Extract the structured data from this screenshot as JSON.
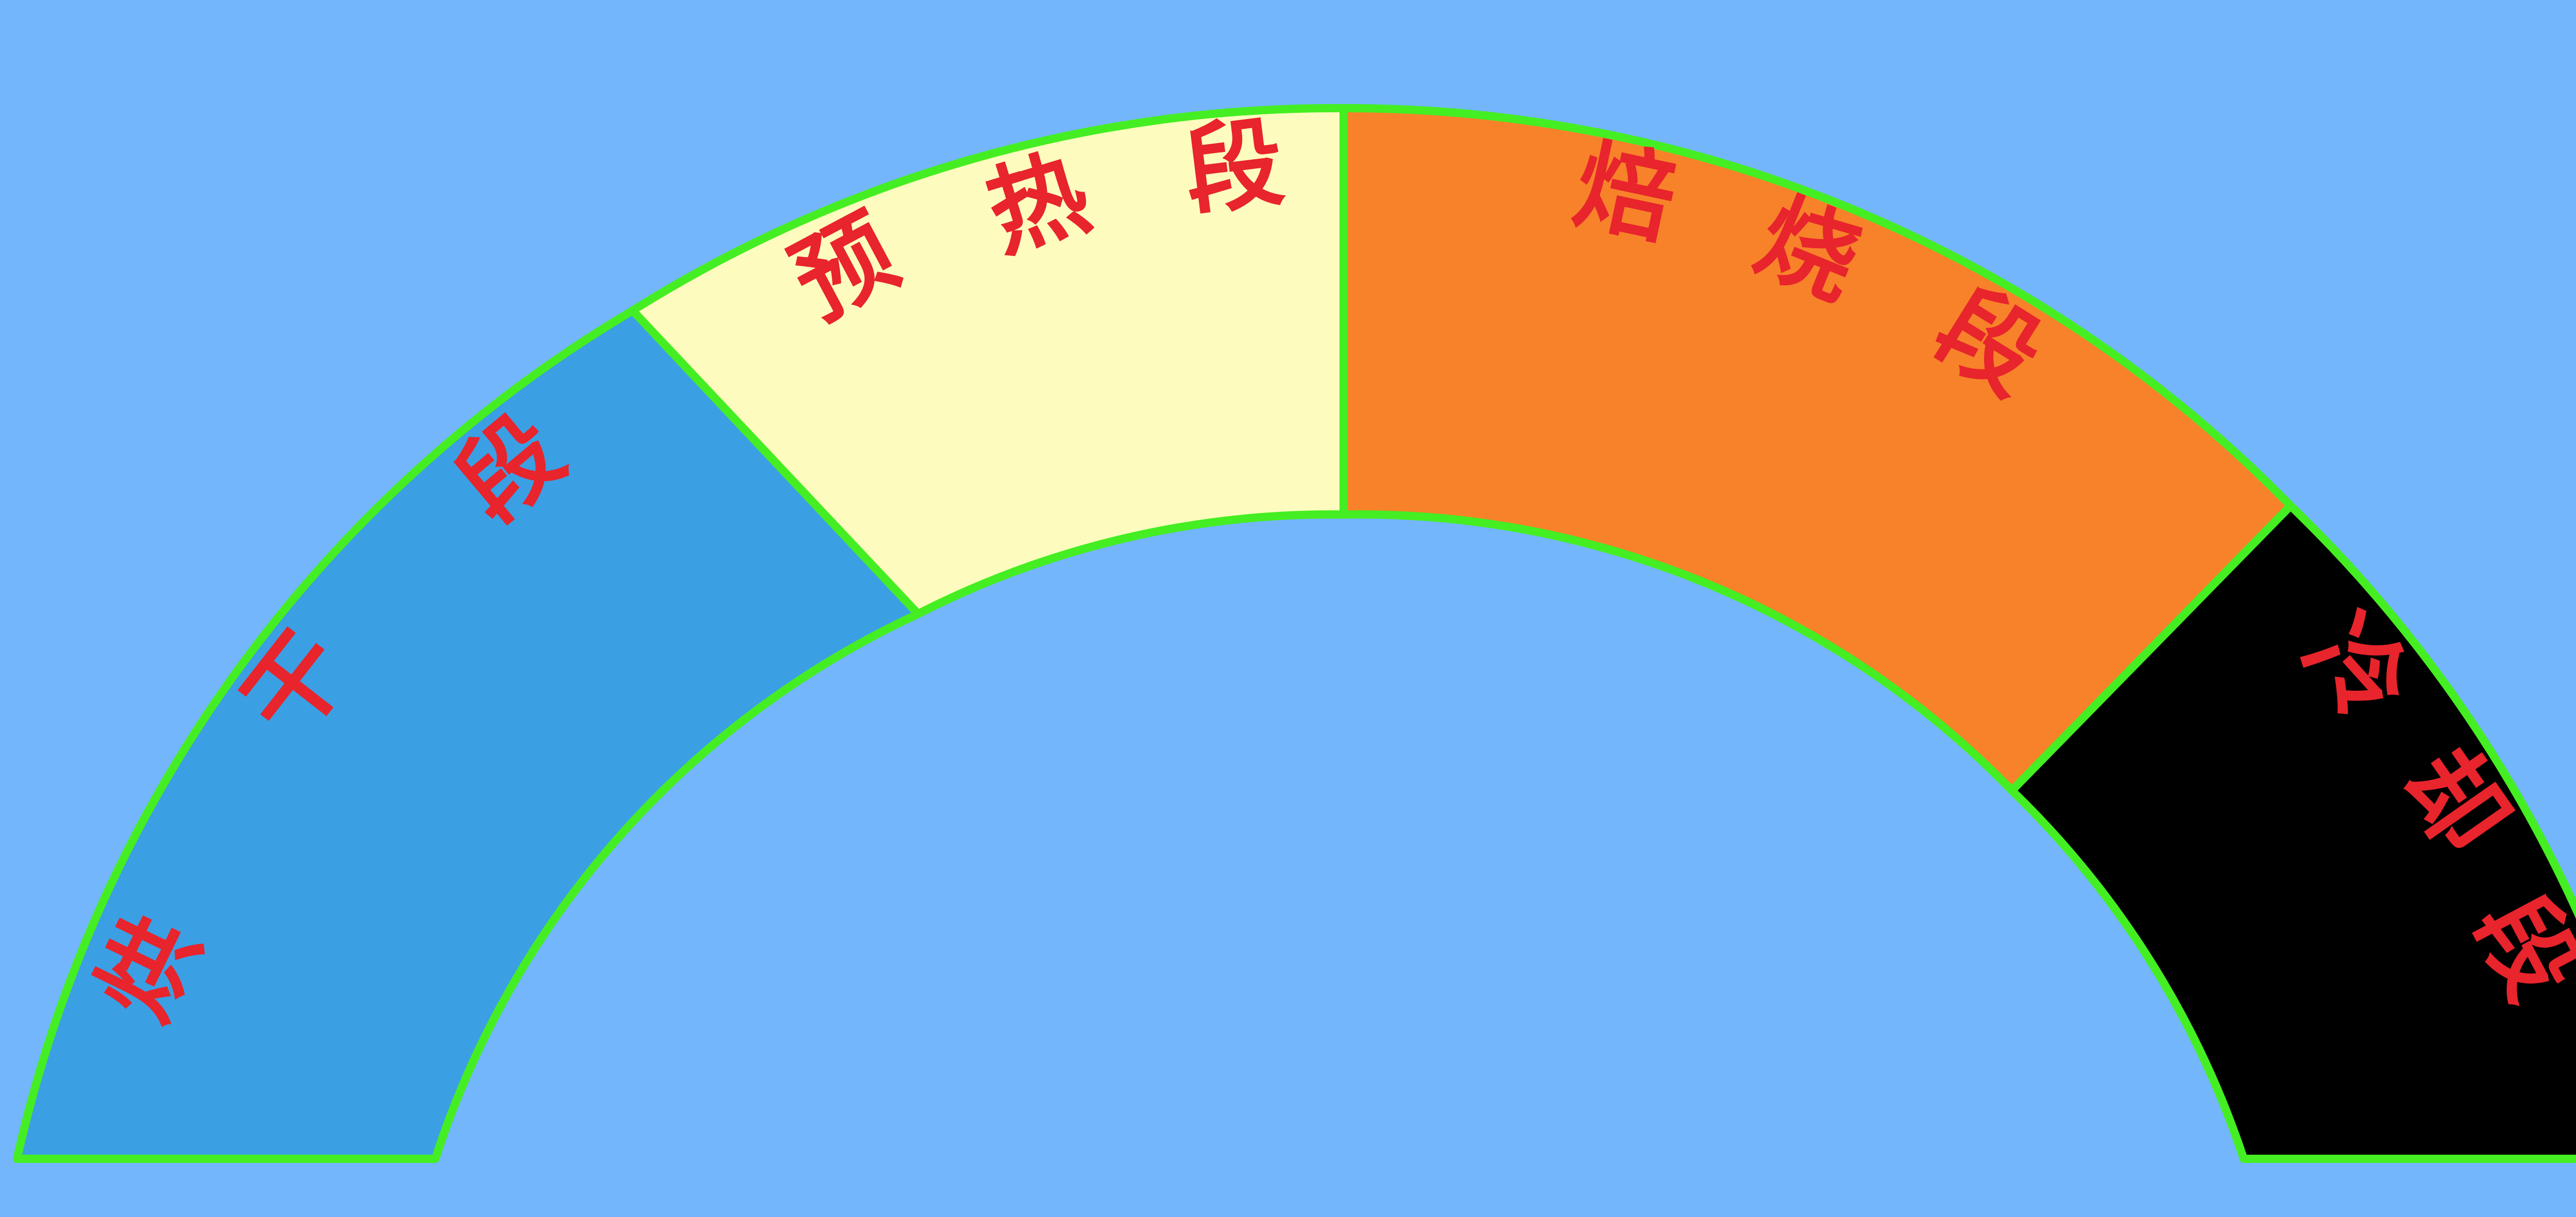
{
  "colors": {
    "background": "#74b6fb",
    "outline": "#44ee22",
    "label_text": "#e8242c"
  },
  "segments": [
    {
      "id": "drying",
      "label": [
        "烘",
        "干",
        "段"
      ],
      "fill": "#3b9fe3"
    },
    {
      "id": "preheat",
      "label": [
        "预",
        "热",
        "段"
      ],
      "fill": "#fdfcbe"
    },
    {
      "id": "roasting",
      "label": [
        "焙",
        "烧",
        "段"
      ],
      "fill": "#f7822a"
    },
    {
      "id": "cooling",
      "label": [
        "冷",
        "却",
        "段"
      ],
      "fill": "#000000"
    }
  ]
}
